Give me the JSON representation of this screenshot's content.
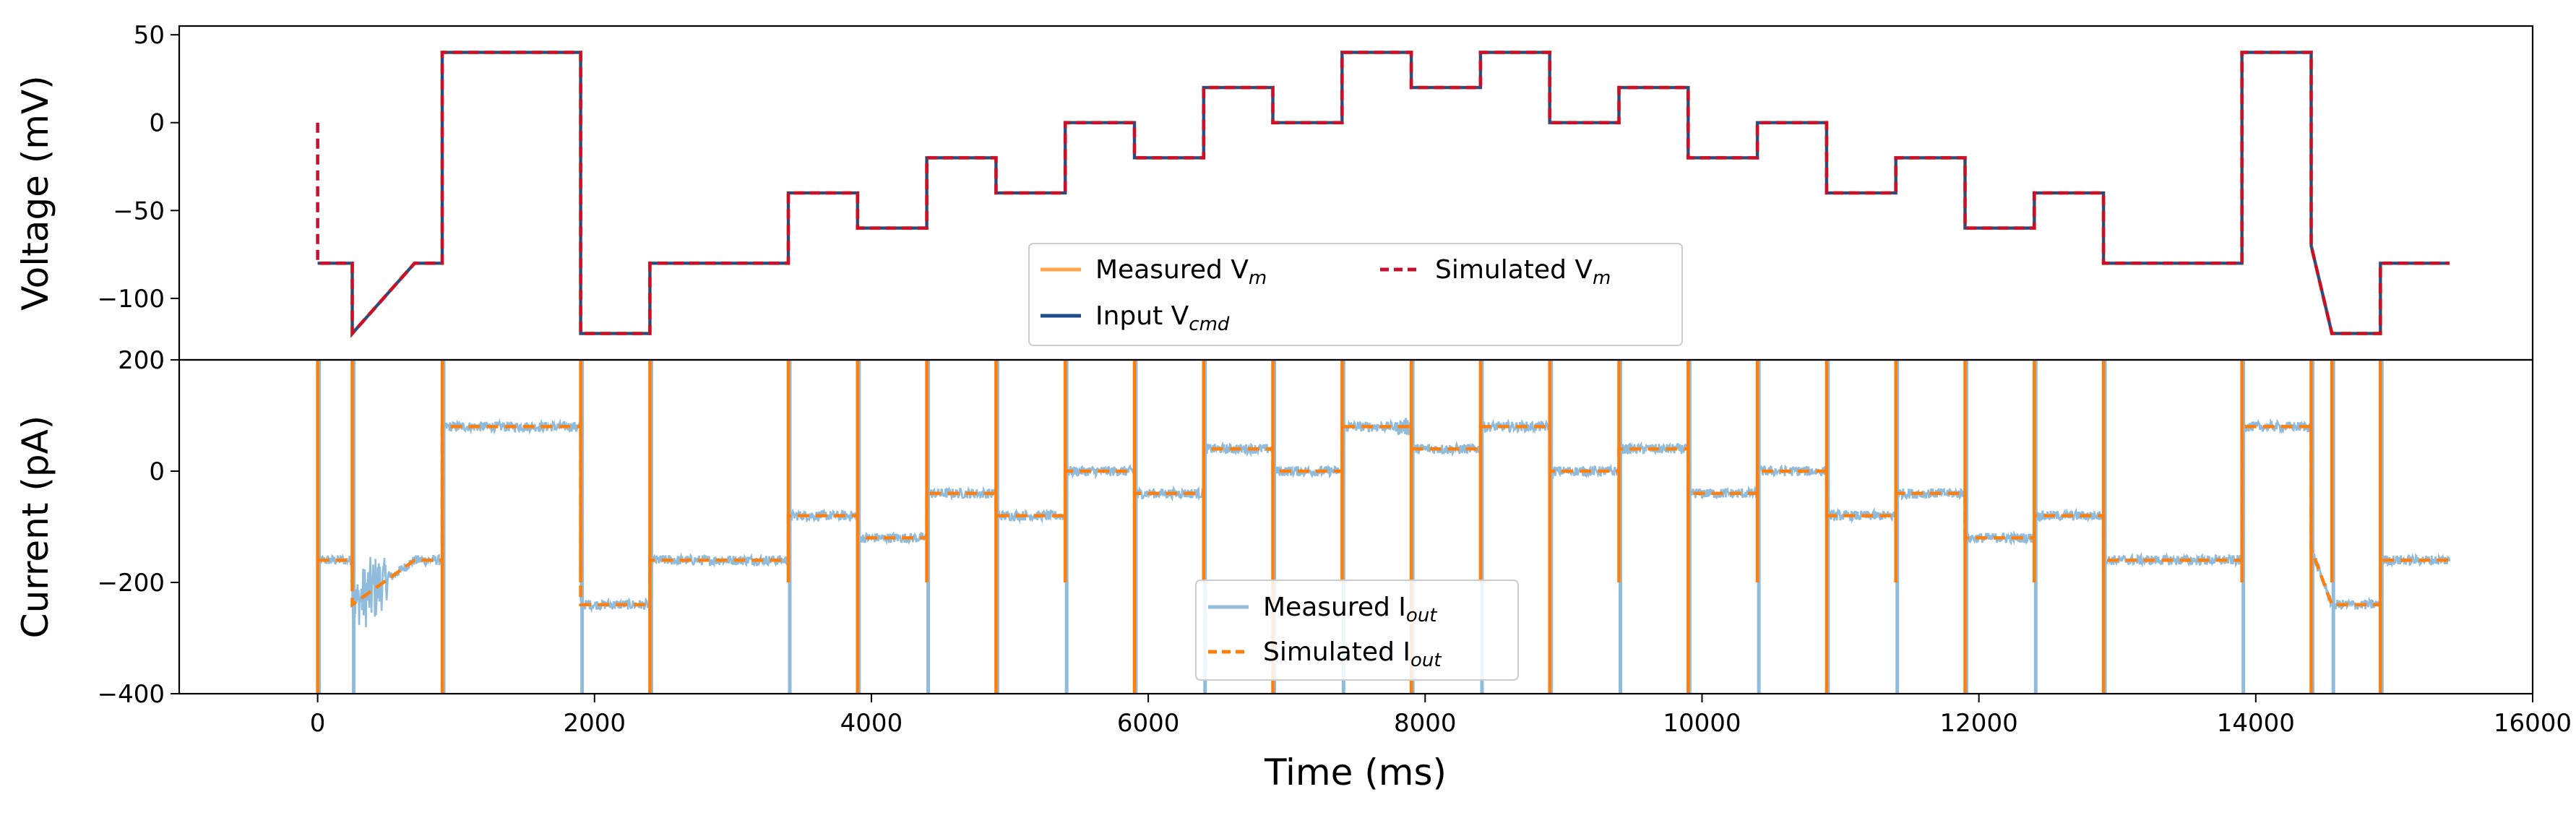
{
  "chart_data": [
    {
      "type": "line",
      "panel": "voltage",
      "ylabel": "Voltage (mV)",
      "xlabel": "",
      "xlim": [
        -1000,
        16000
      ],
      "ylim": [
        -135,
        55
      ],
      "yticks": [
        50,
        0,
        -50,
        -100
      ],
      "ytick_labels": [
        "50",
        "0",
        "−50",
        "−100"
      ],
      "grid": false,
      "legend": {
        "placement": "lower-center",
        "entries": [
          {
            "label": "Measured V",
            "sub": "m",
            "color": "#ffa64d",
            "style": "solid"
          },
          {
            "label": "Simulated V",
            "sub": "m",
            "color": "#c8102e",
            "style": "dashed"
          },
          {
            "label": "Input V",
            "sub": "cmd",
            "color": "#1f4e8c",
            "style": "solid"
          }
        ]
      },
      "series": [
        {
          "name": "Input Vcmd",
          "color": "#1f4e8c",
          "points": [
            [
              0,
              -80
            ],
            [
              250,
              -80
            ],
            [
              250,
              -120
            ],
            [
              700,
              -80
            ],
            [
              900,
              -80
            ],
            [
              900,
              40
            ],
            [
              1900,
              40
            ],
            [
              1900,
              -120
            ],
            [
              2400,
              -120
            ],
            [
              2400,
              -80
            ],
            [
              3400,
              -80
            ],
            [
              3400,
              -40
            ],
            [
              3900,
              -40
            ],
            [
              3900,
              -60
            ],
            [
              4400,
              -60
            ],
            [
              4400,
              -20
            ],
            [
              4900,
              -20
            ],
            [
              4900,
              -40
            ],
            [
              5400,
              -40
            ],
            [
              5400,
              0
            ],
            [
              5900,
              0
            ],
            [
              5900,
              -20
            ],
            [
              6400,
              -20
            ],
            [
              6400,
              20
            ],
            [
              6900,
              20
            ],
            [
              6900,
              0
            ],
            [
              7400,
              0
            ],
            [
              7400,
              40
            ],
            [
              7900,
              40
            ],
            [
              7900,
              20
            ],
            [
              8400,
              20
            ],
            [
              8400,
              40
            ],
            [
              8900,
              40
            ],
            [
              8900,
              0
            ],
            [
              9400,
              0
            ],
            [
              9400,
              20
            ],
            [
              9900,
              20
            ],
            [
              9900,
              -20
            ],
            [
              10400,
              -20
            ],
            [
              10400,
              0
            ],
            [
              10900,
              0
            ],
            [
              10900,
              -40
            ],
            [
              11400,
              -40
            ],
            [
              11400,
              -20
            ],
            [
              11900,
              -20
            ],
            [
              11900,
              -60
            ],
            [
              12400,
              -60
            ],
            [
              12400,
              -40
            ],
            [
              12900,
              -40
            ],
            [
              12900,
              -80
            ],
            [
              13900,
              -80
            ],
            [
              13900,
              40
            ],
            [
              14400,
              40
            ],
            [
              14400,
              -70
            ],
            [
              14550,
              -120
            ],
            [
              14900,
              -120
            ],
            [
              14900,
              -80
            ],
            [
              15400,
              -80
            ]
          ]
        }
      ]
    },
    {
      "type": "line",
      "panel": "current",
      "ylabel": "Current (pA)",
      "xlabel": "Time (ms)",
      "xlim": [
        -1000,
        16000
      ],
      "ylim": [
        -400,
        200
      ],
      "xticks": [
        0,
        2000,
        4000,
        6000,
        8000,
        10000,
        12000,
        14000,
        16000
      ],
      "xtick_labels": [
        "0",
        "2000",
        "4000",
        "6000",
        "8000",
        "10000",
        "12000",
        "14000",
        "16000"
      ],
      "yticks": [
        200,
        0,
        -200,
        -400
      ],
      "ytick_labels": [
        "200",
        "0",
        "−200",
        "−400"
      ],
      "grid": false,
      "legend": {
        "placement": "lower-center",
        "entries": [
          {
            "label": "Measured I",
            "sub": "out",
            "color": "#8fbcdc",
            "style": "solid"
          },
          {
            "label": "Simulated I",
            "sub": "out",
            "color": "#ff7f0e",
            "style": "dashed"
          }
        ]
      },
      "series": [
        {
          "name": "Simulated Iout",
          "color": "#ff7f0e",
          "points": [
            [
              0,
              -160
            ],
            [
              250,
              -160
            ],
            [
              250,
              -240
            ],
            [
              700,
              -160
            ],
            [
              900,
              -160
            ],
            [
              900,
              80
            ],
            [
              1900,
              80
            ],
            [
              1900,
              -240
            ],
            [
              2400,
              -240
            ],
            [
              2400,
              -160
            ],
            [
              3400,
              -160
            ],
            [
              3400,
              -80
            ],
            [
              3900,
              -80
            ],
            [
              3900,
              -120
            ],
            [
              4400,
              -120
            ],
            [
              4400,
              -40
            ],
            [
              4900,
              -40
            ],
            [
              4900,
              -80
            ],
            [
              5400,
              -80
            ],
            [
              5400,
              0
            ],
            [
              5900,
              0
            ],
            [
              5900,
              -40
            ],
            [
              6400,
              -40
            ],
            [
              6400,
              40
            ],
            [
              6900,
              40
            ],
            [
              6900,
              0
            ],
            [
              7400,
              0
            ],
            [
              7400,
              80
            ],
            [
              7900,
              80
            ],
            [
              7900,
              40
            ],
            [
              8400,
              40
            ],
            [
              8400,
              80
            ],
            [
              8900,
              80
            ],
            [
              8900,
              0
            ],
            [
              9400,
              0
            ],
            [
              9400,
              40
            ],
            [
              9900,
              40
            ],
            [
              9900,
              -40
            ],
            [
              10400,
              -40
            ],
            [
              10400,
              0
            ],
            [
              10900,
              0
            ],
            [
              10900,
              -80
            ],
            [
              11400,
              -80
            ],
            [
              11400,
              -40
            ],
            [
              11900,
              -40
            ],
            [
              11900,
              -120
            ],
            [
              12400,
              -120
            ],
            [
              12400,
              -80
            ],
            [
              12900,
              -80
            ],
            [
              12900,
              -160
            ],
            [
              13900,
              -160
            ],
            [
              13900,
              80
            ],
            [
              14400,
              80
            ],
            [
              14400,
              -140
            ],
            [
              14550,
              -240
            ],
            [
              14900,
              -240
            ],
            [
              14900,
              -160
            ],
            [
              15400,
              -160
            ]
          ]
        }
      ],
      "transient_spikes_ms": [
        0,
        250,
        900,
        1900,
        2400,
        3400,
        3900,
        4400,
        4900,
        5400,
        5900,
        6400,
        6900,
        7400,
        7900,
        8400,
        8900,
        9400,
        9900,
        10400,
        10900,
        11400,
        11900,
        12400,
        12900,
        13900,
        14400,
        14550,
        14900
      ]
    }
  ]
}
